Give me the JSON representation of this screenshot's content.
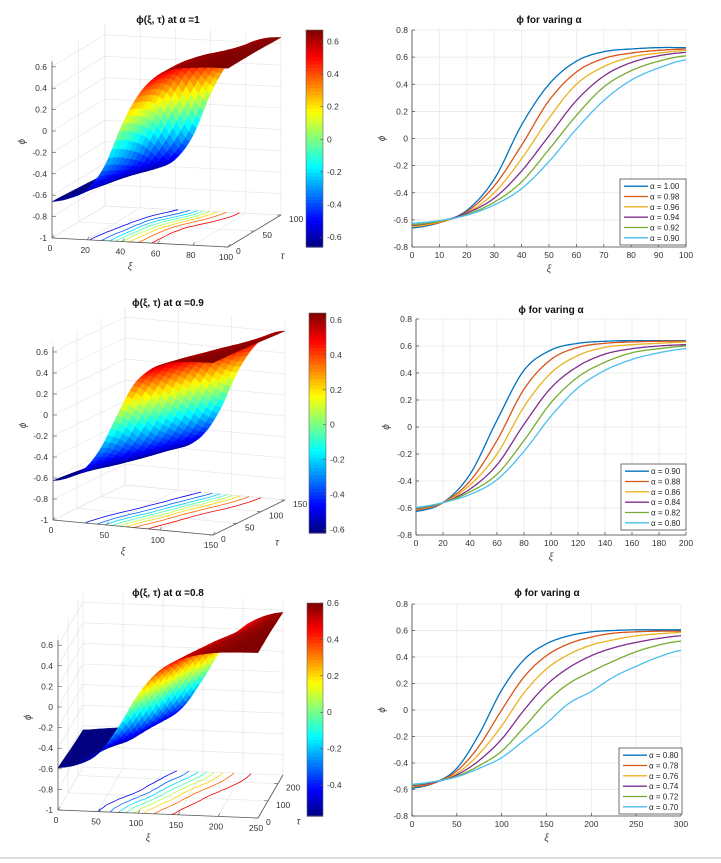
{
  "chart_data": [
    {
      "type": "surface",
      "title": "ϕ(ξ, τ) at α =1",
      "xlabel": "ξ",
      "ylabel": "τ",
      "zlabel": "ϕ",
      "xlim": [
        0,
        100
      ],
      "ylim": [
        0,
        100
      ],
      "zlim": [
        -1,
        0.7
      ],
      "xticks": [
        0,
        20,
        40,
        60,
        80,
        100
      ],
      "yticks": [
        0,
        50,
        100
      ],
      "zticks": [
        -1,
        -0.8,
        -0.6,
        -0.4,
        -0.2,
        0,
        0.2,
        0.4,
        0.6
      ],
      "colormap": "jet",
      "grid": true,
      "contours": "floor",
      "colorbar": {
        "range": [
          -0.66,
          0.67
        ],
        "ticks": [
          -0.6,
          -0.4,
          -0.2,
          0,
          0.2,
          0.4,
          0.6
        ]
      },
      "surface": {
        "xi": [
          0,
          10,
          20,
          30,
          40,
          50,
          60,
          70,
          80,
          90,
          100
        ],
        "tau": [
          0,
          50,
          100
        ],
        "phi": [
          [
            -0.66,
            -0.62,
            -0.53,
            -0.3,
            0.1,
            0.4,
            0.57,
            0.64,
            0.66,
            0.67,
            0.67
          ],
          [
            -0.68,
            -0.65,
            -0.6,
            -0.45,
            -0.1,
            0.25,
            0.5,
            0.61,
            0.65,
            0.665,
            0.67
          ],
          [
            -0.7,
            -0.68,
            -0.66,
            -0.62,
            -0.53,
            -0.3,
            0.1,
            0.4,
            0.57,
            0.64,
            0.66
          ]
        ]
      }
    },
    {
      "type": "line",
      "title": "ϕ for varing α",
      "xlabel": "ξ",
      "ylabel": "ϕ",
      "xlim": [
        0,
        100
      ],
      "ylim": [
        -0.8,
        0.8
      ],
      "xticks": [
        0,
        10,
        20,
        30,
        40,
        50,
        60,
        70,
        80,
        90,
        100
      ],
      "yticks": [
        -0.8,
        -0.6,
        -0.4,
        -0.2,
        0,
        0.2,
        0.4,
        0.6,
        0.8
      ],
      "grid": true,
      "legend": "bottom-right",
      "x": [
        0,
        10,
        20,
        30,
        40,
        50,
        60,
        70,
        80,
        90,
        100
      ],
      "series": [
        {
          "name": "α = 1.00",
          "color": "#0072BD",
          "values": [
            -0.66,
            -0.62,
            -0.53,
            -0.3,
            0.1,
            0.4,
            0.57,
            0.64,
            0.66,
            0.67,
            0.67
          ]
        },
        {
          "name": "α = 0.98",
          "color": "#D95319",
          "values": [
            -0.65,
            -0.62,
            -0.54,
            -0.35,
            -0.05,
            0.28,
            0.49,
            0.59,
            0.63,
            0.65,
            0.66
          ]
        },
        {
          "name": "α = 0.96",
          "color": "#EDB120",
          "values": [
            -0.65,
            -0.615,
            -0.55,
            -0.4,
            -0.15,
            0.15,
            0.4,
            0.53,
            0.6,
            0.63,
            0.65
          ]
        },
        {
          "name": "α = 0.94",
          "color": "#7E2F8E",
          "values": [
            -0.64,
            -0.61,
            -0.55,
            -0.44,
            -0.24,
            0.02,
            0.28,
            0.46,
            0.56,
            0.61,
            0.635
          ]
        },
        {
          "name": "α = 0.92",
          "color": "#77AC30",
          "values": [
            -0.635,
            -0.61,
            -0.56,
            -0.47,
            -0.32,
            -0.08,
            0.17,
            0.38,
            0.5,
            0.57,
            0.61
          ]
        },
        {
          "name": "α = 0.90",
          "color": "#4DBEEE",
          "values": [
            -0.625,
            -0.605,
            -0.565,
            -0.49,
            -0.37,
            -0.17,
            0.07,
            0.28,
            0.43,
            0.52,
            0.58
          ]
        }
      ]
    },
    {
      "type": "surface",
      "title": "ϕ(ξ, τ) at α =0.9",
      "xlabel": "ξ",
      "ylabel": "τ",
      "zlabel": "ϕ",
      "xlim": [
        0,
        150
      ],
      "ylim": [
        0,
        150
      ],
      "zlim": [
        -1,
        0.7
      ],
      "xticks": [
        0,
        50,
        100,
        150
      ],
      "yticks": [
        0,
        50,
        100,
        150
      ],
      "zticks": [
        -1,
        -0.8,
        -0.6,
        -0.4,
        -0.2,
        0,
        0.2,
        0.4,
        0.6
      ],
      "colormap": "jet",
      "grid": true,
      "contours": "floor",
      "colorbar": {
        "range": [
          -0.62,
          0.64
        ],
        "ticks": [
          -0.6,
          -0.4,
          -0.2,
          0,
          0.2,
          0.4,
          0.6
        ]
      },
      "surface": {
        "xi": [
          0,
          15,
          30,
          45,
          60,
          75,
          90,
          105,
          120,
          135,
          150
        ],
        "tau": [
          0,
          75,
          150
        ],
        "phi": [
          [
            -0.625,
            -0.58,
            -0.48,
            -0.27,
            0.05,
            0.35,
            0.51,
            0.59,
            0.62,
            0.633,
            0.64
          ],
          [
            -0.66,
            -0.635,
            -0.6,
            -0.52,
            -0.35,
            -0.07,
            0.26,
            0.47,
            0.57,
            0.615,
            0.63
          ],
          [
            -0.69,
            -0.67,
            -0.64,
            -0.61,
            -0.56,
            -0.43,
            -0.18,
            0.17,
            0.42,
            0.56,
            0.61
          ]
        ]
      }
    },
    {
      "type": "line",
      "title": "ϕ for varing α",
      "xlabel": "ξ",
      "ylabel": "ϕ",
      "xlim": [
        0,
        200
      ],
      "ylim": [
        -0.8,
        0.8
      ],
      "xticks": [
        0,
        20,
        40,
        60,
        80,
        100,
        120,
        140,
        160,
        180,
        200
      ],
      "yticks": [
        -0.8,
        -0.6,
        -0.4,
        -0.2,
        0,
        0.2,
        0.4,
        0.6,
        0.8
      ],
      "grid": true,
      "legend": "bottom-right",
      "x": [
        0,
        20,
        40,
        60,
        80,
        100,
        120,
        140,
        160,
        180,
        200
      ],
      "series": [
        {
          "name": "α = 0.90",
          "color": "#0072BD",
          "values": [
            -0.625,
            -0.56,
            -0.35,
            0.05,
            0.42,
            0.57,
            0.62,
            0.635,
            0.64,
            0.64,
            0.64
          ]
        },
        {
          "name": "α = 0.88",
          "color": "#D95319",
          "values": [
            -0.615,
            -0.56,
            -0.4,
            -0.1,
            0.28,
            0.5,
            0.59,
            0.62,
            0.63,
            0.635,
            0.635
          ]
        },
        {
          "name": "α = 0.86",
          "color": "#EDB120",
          "values": [
            -0.61,
            -0.56,
            -0.43,
            -0.2,
            0.15,
            0.4,
            0.53,
            0.59,
            0.61,
            0.62,
            0.63
          ]
        },
        {
          "name": "α = 0.84",
          "color": "#7E2F8E",
          "values": [
            -0.605,
            -0.56,
            -0.46,
            -0.28,
            0.02,
            0.29,
            0.45,
            0.54,
            0.58,
            0.6,
            0.61
          ]
        },
        {
          "name": "α = 0.82",
          "color": "#77AC30",
          "values": [
            -0.6,
            -0.56,
            -0.48,
            -0.35,
            -0.1,
            0.18,
            0.37,
            0.48,
            0.55,
            0.58,
            0.6
          ]
        },
        {
          "name": "α = 0.80",
          "color": "#4DBEEE",
          "values": [
            -0.595,
            -0.56,
            -0.5,
            -0.39,
            -0.18,
            0.08,
            0.29,
            0.42,
            0.5,
            0.55,
            0.58
          ]
        }
      ]
    },
    {
      "type": "surface",
      "title": "ϕ(ξ, τ) at α =0.8",
      "xlabel": "ξ",
      "ylabel": "τ",
      "zlabel": "ϕ",
      "xlim": [
        0,
        250
      ],
      "ylim": [
        0,
        250
      ],
      "zlim": [
        -1,
        0.7
      ],
      "xticks": [
        0,
        50,
        100,
        150,
        200,
        250
      ],
      "yticks": [
        0,
        100,
        200
      ],
      "zticks": [
        -1,
        -0.8,
        -0.6,
        -0.4,
        -0.2,
        0,
        0.2,
        0.4,
        0.6
      ],
      "colormap": "jet",
      "grid": true,
      "contours": "floor",
      "colorbar": {
        "range": [
          -0.57,
          0.6
        ],
        "ticks": [
          -0.4,
          -0.2,
          0,
          0.2,
          0.4,
          0.6
        ]
      },
      "surface": {
        "xi": [
          0,
          25,
          50,
          75,
          100,
          125,
          150,
          175,
          200,
          225,
          250
        ],
        "tau": [
          0,
          125,
          250
        ],
        "phi": [
          [
            -0.59,
            -0.55,
            -0.44,
            -0.18,
            0.15,
            0.38,
            0.5,
            0.56,
            0.59,
            0.6,
            0.605
          ],
          [
            -0.62,
            -0.6,
            -0.57,
            -0.5,
            -0.3,
            0.02,
            0.3,
            0.46,
            0.54,
            0.58,
            0.6
          ],
          [
            -0.64,
            -0.62,
            -0.6,
            -0.57,
            -0.52,
            -0.38,
            -0.1,
            0.22,
            0.42,
            0.53,
            0.58
          ]
        ]
      }
    },
    {
      "type": "line",
      "title": "ϕ for varing α",
      "xlabel": "ξ",
      "ylabel": "ϕ",
      "xlim": [
        0,
        300
      ],
      "ylim": [
        -0.8,
        0.8
      ],
      "xticks": [
        0,
        50,
        100,
        150,
        200,
        250,
        300
      ],
      "yticks": [
        -0.8,
        -0.6,
        -0.4,
        -0.2,
        0,
        0.2,
        0.4,
        0.6,
        0.8
      ],
      "grid": true,
      "legend": "bottom-right",
      "x": [
        0,
        25,
        50,
        75,
        100,
        125,
        150,
        175,
        200,
        225,
        250,
        275,
        300
      ],
      "series": [
        {
          "name": "α = 0.80",
          "color": "#0072BD",
          "values": [
            -0.59,
            -0.55,
            -0.44,
            -0.18,
            0.15,
            0.38,
            0.5,
            0.56,
            0.59,
            0.6,
            0.605,
            0.605,
            0.605
          ]
        },
        {
          "name": "α = 0.78",
          "color": "#D95319",
          "values": [
            -0.58,
            -0.55,
            -0.46,
            -0.27,
            0.0,
            0.25,
            0.41,
            0.5,
            0.55,
            0.58,
            0.59,
            0.595,
            0.595
          ]
        },
        {
          "name": "α = 0.76",
          "color": "#EDB120",
          "values": [
            -0.575,
            -0.545,
            -0.48,
            -0.33,
            -0.12,
            0.13,
            0.31,
            0.42,
            0.49,
            0.53,
            0.56,
            0.575,
            0.585
          ]
        },
        {
          "name": "α = 0.74",
          "color": "#7E2F8E",
          "values": [
            -0.57,
            -0.545,
            -0.49,
            -0.38,
            -0.22,
            0.0,
            0.19,
            0.32,
            0.41,
            0.47,
            0.51,
            0.54,
            0.56
          ]
        },
        {
          "name": "α = 0.72",
          "color": "#77AC30",
          "values": [
            -0.565,
            -0.54,
            -0.5,
            -0.42,
            -0.31,
            -0.13,
            0.06,
            0.2,
            0.29,
            0.37,
            0.44,
            0.49,
            0.52
          ]
        },
        {
          "name": "α = 0.70",
          "color": "#4DBEEE",
          "values": [
            -0.56,
            -0.54,
            -0.505,
            -0.44,
            -0.36,
            -0.23,
            -0.1,
            0.05,
            0.14,
            0.25,
            0.33,
            0.4,
            0.45
          ]
        }
      ]
    }
  ]
}
